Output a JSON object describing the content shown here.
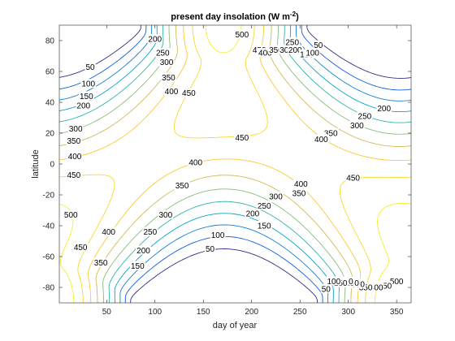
{
  "chart_data": {
    "type": "contour",
    "title_main": "present day insolation (W m",
    "title_sup": "-2",
    "title_tail": ")",
    "xlabel": "day of year",
    "ylabel": "latitude",
    "xlim": [
      1,
      365
    ],
    "ylim": [
      -90,
      90
    ],
    "xticks": [
      50,
      100,
      150,
      200,
      250,
      300,
      350
    ],
    "yticks": [
      -80,
      -60,
      -40,
      -20,
      0,
      20,
      40,
      60,
      80
    ],
    "grid": false,
    "colormap": "parula",
    "levels": [
      50,
      100,
      150,
      200,
      250,
      300,
      350,
      400,
      450,
      500
    ],
    "level_colors": {
      "50": "#352a87",
      "100": "#0f5cdd",
      "150": "#1481d6",
      "200": "#06a4ca",
      "250": "#2eb7a4",
      "300": "#87bf77",
      "350": "#d1bb59",
      "400": "#fec832",
      "450": "#f9d92b",
      "500": "#f4ee2d"
    },
    "contour_labels": [
      {
        "text": "50",
        "x": 33,
        "y": 63
      },
      {
        "text": "100",
        "x": 31,
        "y": 52
      },
      {
        "text": "150",
        "x": 29,
        "y": 44
      },
      {
        "text": "200",
        "x": 26,
        "y": 38
      },
      {
        "text": "300",
        "x": 18,
        "y": 23
      },
      {
        "text": "350",
        "x": 16,
        "y": 15
      },
      {
        "text": "400",
        "x": 17,
        "y": 5
      },
      {
        "text": "450",
        "x": 16,
        "y": -7
      },
      {
        "text": "500",
        "x": 13,
        "y": -33
      },
      {
        "text": "450",
        "x": 23,
        "y": -54
      },
      {
        "text": "400",
        "x": 52,
        "y": -44
      },
      {
        "text": "350",
        "x": 44,
        "y": -64
      },
      {
        "text": "300",
        "x": 111,
        "y": -33
      },
      {
        "text": "250",
        "x": 95,
        "y": -44
      },
      {
        "text": "200",
        "x": 88,
        "y": -56
      },
      {
        "text": "150",
        "x": 82,
        "y": -66
      },
      {
        "text": "100",
        "x": 165,
        "y": -46
      },
      {
        "text": "50",
        "x": 157,
        "y": -55
      },
      {
        "text": "400",
        "x": 142,
        "y": 1
      },
      {
        "text": "350",
        "x": 128,
        "y": -14
      },
      {
        "text": "300",
        "x": 225,
        "y": -21
      },
      {
        "text": "250",
        "x": 213,
        "y": -27
      },
      {
        "text": "200",
        "x": 201,
        "y": -32
      },
      {
        "text": "150",
        "x": 213,
        "y": -40
      },
      {
        "text": "350",
        "x": 249,
        "y": -19
      },
      {
        "text": "400",
        "x": 251,
        "y": -13
      },
      {
        "text": "450",
        "x": 305,
        "y": -9
      },
      {
        "text": "450",
        "x": 190,
        "y": 17
      },
      {
        "text": "450",
        "x": 135,
        "y": 46
      },
      {
        "text": "400",
        "x": 117,
        "y": 47
      },
      {
        "text": "350",
        "x": 114,
        "y": 56
      },
      {
        "text": "300",
        "x": 112,
        "y": 66
      },
      {
        "text": "250",
        "x": 108,
        "y": 72
      },
      {
        "text": "200",
        "x": 100,
        "y": 81
      },
      {
        "text": "500",
        "x": 190,
        "y": 84
      },
      {
        "text": "450",
        "x": 208,
        "y": 74
      },
      {
        "text": "400",
        "x": 214,
        "y": 72
      },
      {
        "text": "350",
        "x": 225,
        "y": 74
      },
      {
        "text": "300",
        "x": 236,
        "y": 74
      },
      {
        "text": "250",
        "x": 242,
        "y": 79
      },
      {
        "text": "200",
        "x": 245,
        "y": 74
      },
      {
        "text": "150",
        "x": 257,
        "y": 71
      },
      {
        "text": "100",
        "x": 263,
        "y": 72
      },
      {
        "text": "50",
        "x": 269,
        "y": 77
      },
      {
        "text": "200",
        "x": 337,
        "y": 36
      },
      {
        "text": "250",
        "x": 317,
        "y": 31
      },
      {
        "text": "300",
        "x": 309,
        "y": 25
      },
      {
        "text": "350",
        "x": 282,
        "y": 20
      },
      {
        "text": "400",
        "x": 272,
        "y": 16
      },
      {
        "text": "500",
        "x": 350,
        "y": -76
      },
      {
        "text": "450",
        "x": 338,
        "y": -79
      },
      {
        "text": "400",
        "x": 329,
        "y": -80
      },
      {
        "text": "350",
        "x": 318,
        "y": -80
      },
      {
        "text": "300",
        "x": 310,
        "y": -78
      },
      {
        "text": "250",
        "x": 304,
        "y": -77
      },
      {
        "text": "200",
        "x": 298,
        "y": -76
      },
      {
        "text": "150",
        "x": 292,
        "y": -77
      },
      {
        "text": "100",
        "x": 285,
        "y": -76
      },
      {
        "text": "50",
        "x": 277,
        "y": -81
      }
    ]
  }
}
